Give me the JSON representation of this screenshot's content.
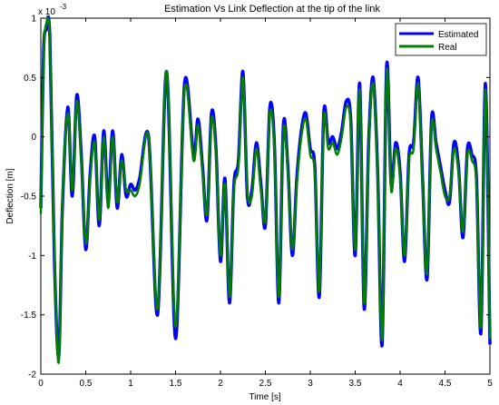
{
  "chart_data": {
    "type": "line",
    "title": "Estimation Vs Link Deflection at the tip of the link",
    "xlabel": "Time [s]",
    "ylabel": "Deflection [m]",
    "y_exponent_label": "x 10",
    "y_exponent_power": "-3",
    "xlim": [
      0,
      5
    ],
    "ylim": [
      -2,
      1
    ],
    "xticks": [
      "0",
      "0.5",
      "1",
      "1.5",
      "2",
      "2.5",
      "3",
      "3.5",
      "4",
      "4.5",
      "5"
    ],
    "yticks": [
      "-2",
      "-1.5",
      "-1",
      "-0.5",
      "0",
      "0.5",
      "1"
    ],
    "grid": false,
    "legend_position": "top-right",
    "series": [
      {
        "name": "Estimated",
        "color": "#0000ff",
        "x": [
          0,
          0.03,
          0.06,
          0.1,
          0.15,
          0.2,
          0.24,
          0.3,
          0.35,
          0.4,
          0.45,
          0.5,
          0.55,
          0.6,
          0.65,
          0.7,
          0.75,
          0.8,
          0.85,
          0.9,
          0.95,
          1.0,
          1.05,
          1.1,
          1.2,
          1.3,
          1.4,
          1.5,
          1.6,
          1.7,
          1.75,
          1.8,
          1.85,
          1.9,
          1.95,
          2.0,
          2.05,
          2.1,
          2.15,
          2.2,
          2.25,
          2.3,
          2.35,
          2.4,
          2.45,
          2.5,
          2.55,
          2.6,
          2.65,
          2.7,
          2.75,
          2.8,
          2.85,
          2.9,
          2.95,
          3.0,
          3.05,
          3.1,
          3.15,
          3.2,
          3.25,
          3.3,
          3.35,
          3.4,
          3.45,
          3.5,
          3.55,
          3.6,
          3.65,
          3.7,
          3.75,
          3.8,
          3.85,
          3.9,
          3.95,
          4.0,
          4.05,
          4.1,
          4.15,
          4.2,
          4.25,
          4.3,
          4.35,
          4.4,
          4.45,
          4.5,
          4.55,
          4.6,
          4.65,
          4.7,
          4.75,
          4.8,
          4.85,
          4.9,
          4.95,
          5.0
        ],
        "y": [
          -0.6,
          0.7,
          0.9,
          0.85,
          -1.0,
          -1.85,
          -0.6,
          0.25,
          -0.5,
          0.35,
          -0.15,
          -0.95,
          -0.3,
          0.0,
          -0.75,
          0.05,
          -0.55,
          0.05,
          -0.6,
          -0.15,
          -0.5,
          -0.4,
          -0.45,
          -0.35,
          0.0,
          -1.5,
          0.55,
          -1.7,
          0.45,
          -0.15,
          0.15,
          -0.25,
          -0.7,
          0.2,
          -0.1,
          -1.05,
          -0.35,
          -1.4,
          -0.4,
          -0.2,
          0.55,
          -0.5,
          -0.45,
          -0.05,
          -0.4,
          -0.75,
          0.25,
          -0.05,
          -1.4,
          0.1,
          -0.25,
          -1.0,
          -0.35,
          0.05,
          0.2,
          -0.1,
          -0.25,
          -1.35,
          0.2,
          -0.05,
          0.0,
          -0.1,
          0.05,
          0.3,
          0.15,
          -1.0,
          0.45,
          -1.45,
          -0.05,
          0.5,
          -0.3,
          -1.75,
          0.6,
          -0.4,
          -0.05,
          -0.3,
          -1.05,
          -0.15,
          -0.05,
          0.5,
          -0.35,
          -1.2,
          0.15,
          -0.05,
          -0.25,
          -0.45,
          -0.55,
          -0.05,
          -0.25,
          -0.85,
          -0.1,
          -0.15,
          -0.35,
          -1.65,
          0.45,
          -1.75
        ]
      },
      {
        "name": "Real",
        "color": "#008000",
        "x": [
          0,
          0.03,
          0.06,
          0.1,
          0.15,
          0.2,
          0.24,
          0.3,
          0.35,
          0.4,
          0.45,
          0.5,
          0.55,
          0.6,
          0.65,
          0.7,
          0.75,
          0.8,
          0.85,
          0.9,
          0.95,
          1.0,
          1.05,
          1.1,
          1.2,
          1.3,
          1.4,
          1.5,
          1.6,
          1.7,
          1.75,
          1.8,
          1.85,
          1.9,
          1.95,
          2.0,
          2.05,
          2.1,
          2.15,
          2.2,
          2.25,
          2.3,
          2.35,
          2.4,
          2.45,
          2.5,
          2.55,
          2.6,
          2.65,
          2.7,
          2.75,
          2.8,
          2.85,
          2.9,
          2.95,
          3.0,
          3.05,
          3.1,
          3.15,
          3.2,
          3.25,
          3.3,
          3.35,
          3.4,
          3.45,
          3.5,
          3.55,
          3.6,
          3.65,
          3.7,
          3.75,
          3.8,
          3.85,
          3.9,
          3.95,
          4.0,
          4.05,
          4.1,
          4.15,
          4.2,
          4.25,
          4.3,
          4.35,
          4.4,
          4.45,
          4.5,
          4.55,
          4.6,
          4.65,
          4.7,
          4.75,
          4.8,
          4.85,
          4.9,
          4.95,
          5.0
        ],
        "y": [
          -0.65,
          0.65,
          0.95,
          0.8,
          -0.95,
          -1.9,
          -0.55,
          0.2,
          -0.45,
          0.3,
          -0.2,
          -0.9,
          -0.35,
          -0.05,
          -0.7,
          0.0,
          -0.6,
          0.0,
          -0.55,
          -0.2,
          -0.45,
          -0.45,
          -0.5,
          -0.4,
          0.0,
          -1.45,
          0.55,
          -1.6,
          0.4,
          -0.2,
          0.1,
          -0.3,
          -0.65,
          0.15,
          -0.15,
          -1.0,
          -0.4,
          -1.35,
          -0.45,
          -0.25,
          0.5,
          -0.45,
          -0.5,
          -0.1,
          -0.45,
          -0.7,
          0.2,
          -0.1,
          -1.35,
          0.05,
          -0.3,
          -0.95,
          -0.4,
          0.0,
          0.15,
          -0.15,
          -0.3,
          -1.3,
          0.15,
          -0.1,
          -0.05,
          -0.15,
          0.0,
          0.25,
          0.1,
          -0.95,
          0.4,
          -1.4,
          -0.1,
          0.45,
          -0.35,
          -1.7,
          0.55,
          -0.45,
          -0.1,
          -0.35,
          -1.0,
          -0.2,
          -0.1,
          0.45,
          -0.4,
          -1.15,
          0.1,
          -0.1,
          -0.3,
          -0.5,
          -0.5,
          -0.1,
          -0.3,
          -0.8,
          -0.15,
          -0.2,
          -0.4,
          -1.6,
          0.4,
          -1.7
        ]
      }
    ]
  }
}
